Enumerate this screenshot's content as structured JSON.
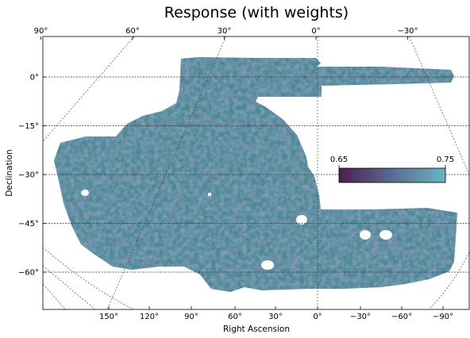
{
  "chart_data": {
    "type": "heatmap",
    "title": "Response (with weights)",
    "xlabel": "Right Ascension",
    "ylabel": "Declination",
    "dec_ticks": [
      {
        "value": 0,
        "label": "0°"
      },
      {
        "value": -15,
        "label": "−15°"
      },
      {
        "value": -30,
        "label": "−30°"
      },
      {
        "value": -45,
        "label": "−45°"
      },
      {
        "value": -60,
        "label": "−60°"
      }
    ],
    "ra_top_ticks": [
      {
        "value": 90,
        "label": "90°"
      },
      {
        "value": 60,
        "label": "60°"
      },
      {
        "value": 30,
        "label": "30°"
      },
      {
        "value": 0,
        "label": "0°"
      },
      {
        "value": -30,
        "label": "−30°"
      }
    ],
    "ra_bottom_ticks": [
      {
        "value": 150,
        "label": "150°"
      },
      {
        "value": 120,
        "label": "120°"
      },
      {
        "value": 90,
        "label": "90°"
      },
      {
        "value": 60,
        "label": "60°"
      },
      {
        "value": 30,
        "label": "30°"
      },
      {
        "value": 0,
        "label": "0°"
      },
      {
        "value": -30,
        "label": "−30°"
      },
      {
        "value": -60,
        "label": "−60°"
      },
      {
        "value": -90,
        "label": "−90°"
      }
    ],
    "colorbar": {
      "min": 0.65,
      "max": 0.75,
      "min_label": "0.65",
      "max_label": "0.75",
      "color_low": "#4a1f4e",
      "color_high": "#6ab6c2"
    },
    "grid": true,
    "colors": {
      "footprint_base": "#4f8596",
      "footprint_dark": "#4a4f7d",
      "footprint_light": "#69b0bd",
      "grid": "#333333"
    }
  }
}
